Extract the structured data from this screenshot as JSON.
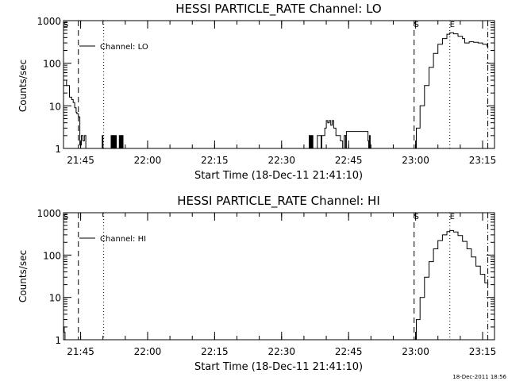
{
  "footer": {
    "timestamp": "18-Dec-2011 18:56"
  },
  "chart_data": [
    {
      "type": "line",
      "title": "HESSI PARTICLE_RATE Channel: LO",
      "xlabel": "Start Time (18-Dec-11 21:41:10)",
      "ylabel": "Counts/sec",
      "yscale": "log",
      "ylim": [
        1,
        1000
      ],
      "xlim_minutes_after_start": [
        0,
        96.5
      ],
      "x_tick_labels": [
        "21:45",
        "22:00",
        "22:15",
        "22:30",
        "22:45",
        "23:00",
        "23:15"
      ],
      "y_tick_labels": [
        "1",
        "10",
        "100",
        "1000"
      ],
      "legend": {
        "entries": [
          "Channel: LO"
        ],
        "position": "top-left"
      },
      "markers": [
        {
          "label": "S",
          "style": "dashed",
          "time": "21:41:10"
        },
        {
          "label": "",
          "style": "dashed",
          "time": "21:44:30"
        },
        {
          "label": "",
          "style": "dotted",
          "time": "21:50:10"
        },
        {
          "label": "S",
          "style": "dashed",
          "time": "22:59:40"
        },
        {
          "label": "E",
          "style": "dotted",
          "time": "23:07:40"
        },
        {
          "label": "",
          "style": "dash-dot",
          "time": "23:16:10"
        }
      ],
      "series": [
        {
          "name": "Channel: LO",
          "x": [
            "21:41:10",
            "21:41:50",
            "21:42:30",
            "21:43:00",
            "21:43:20",
            "21:43:40",
            "21:44:00",
            "21:44:10",
            "21:44:30",
            "21:44:50",
            "21:45:10",
            "21:45:30",
            "21:45:50",
            "21:46:10",
            "21:47:10",
            "21:47:30",
            "21:47:50",
            "21:48:10",
            "21:49:40",
            "21:49:50",
            "21:50:00",
            "21:50:30",
            "21:51:40",
            "21:51:50",
            "21:52:00",
            "21:52:10",
            "21:52:20",
            "21:52:30",
            "21:52:40",
            "21:52:50",
            "21:53:00",
            "21:53:10",
            "21:53:30",
            "21:53:40",
            "21:53:50",
            "21:54:00",
            "21:54:10",
            "21:54:20",
            "21:54:30",
            "22:36:00",
            "22:36:10",
            "22:36:20",
            "22:36:30",
            "22:36:40",
            "22:36:50",
            "22:37:00",
            "22:37:40",
            "22:38:00",
            "22:38:40",
            "22:38:50",
            "22:39:00",
            "22:39:20",
            "22:39:40",
            "22:40:00",
            "22:40:20",
            "22:40:40",
            "22:41:00",
            "22:41:20",
            "22:41:40",
            "22:42:10",
            "22:43:10",
            "22:43:40",
            "22:44:00",
            "22:44:20",
            "22:44:30",
            "22:45:40",
            "22:46:10",
            "22:47:30",
            "22:49:20",
            "22:49:30",
            "22:49:40",
            "22:49:50",
            "22:59:40",
            "23:00:10",
            "23:01:00",
            "23:02:00",
            "23:03:00",
            "23:04:00",
            "23:05:00",
            "23:06:00",
            "23:07:00",
            "23:07:40",
            "23:08:30",
            "23:09:30",
            "23:10:30",
            "23:11:00",
            "23:12:00",
            "23:13:00",
            "23:14:00",
            "23:15:00",
            "23:16:00",
            "23:16:10"
          ],
          "values": [
            40,
            30,
            16,
            14,
            12,
            9,
            7,
            6.5,
            5.5,
            1.2,
            2,
            1.5,
            2,
            1,
            1,
            1,
            1,
            1,
            1,
            2,
            1,
            1,
            1,
            2,
            1,
            2,
            1,
            2,
            1,
            2,
            1,
            1,
            1,
            2,
            1,
            2,
            1,
            2,
            1,
            1,
            2,
            1,
            2,
            1,
            2,
            1,
            1,
            2,
            2,
            1,
            2,
            2,
            3,
            4.5,
            4,
            4.5,
            3.5,
            4.5,
            3,
            2,
            1.5,
            1,
            2,
            1,
            2.5,
            2.5,
            2.5,
            2.5,
            1.5,
            1,
            2,
            1,
            1,
            3,
            10,
            30,
            80,
            170,
            280,
            380,
            480,
            520,
            490,
            430,
            380,
            300,
            320,
            310,
            300,
            280,
            250,
            230
          ]
        }
      ]
    },
    {
      "type": "line",
      "title": "HESSI PARTICLE_RATE Channel: HI",
      "xlabel": "Start Time (18-Dec-11 21:41:10)",
      "ylabel": "Counts/sec",
      "yscale": "log",
      "ylim": [
        1,
        1000
      ],
      "xlim_minutes_after_start": [
        0,
        96.5
      ],
      "x_tick_labels": [
        "21:45",
        "22:00",
        "22:15",
        "22:30",
        "22:45",
        "23:00",
        "23:15"
      ],
      "y_tick_labels": [
        "1",
        "10",
        "100",
        "1000"
      ],
      "legend": {
        "entries": [
          "Channel: HI"
        ],
        "position": "top-left"
      },
      "markers": [
        {
          "label": "S",
          "style": "dashed",
          "time": "21:41:10"
        },
        {
          "label": "",
          "style": "dashed",
          "time": "21:44:30"
        },
        {
          "label": "",
          "style": "dotted",
          "time": "21:50:10"
        },
        {
          "label": "S",
          "style": "dashed",
          "time": "22:59:40"
        },
        {
          "label": "E",
          "style": "dotted",
          "time": "23:07:40"
        },
        {
          "label": "",
          "style": "dash-dot",
          "time": "23:16:10"
        }
      ],
      "series": [
        {
          "name": "Channel: HI",
          "x": [
            "21:41:10",
            "21:41:20",
            "21:41:30",
            "22:59:40",
            "23:00:10",
            "23:01:00",
            "23:02:00",
            "23:03:00",
            "23:04:00",
            "23:05:00",
            "23:06:00",
            "23:07:00",
            "23:07:40",
            "23:08:30",
            "23:09:30",
            "23:10:30",
            "23:11:30",
            "23:12:30",
            "23:13:30",
            "23:14:30",
            "23:15:30",
            "23:16:10"
          ],
          "values": [
            2,
            1.5,
            1,
            1,
            3,
            10,
            30,
            70,
            140,
            220,
            300,
            360,
            380,
            350,
            290,
            210,
            140,
            90,
            55,
            35,
            22,
            17
          ]
        }
      ]
    }
  ]
}
